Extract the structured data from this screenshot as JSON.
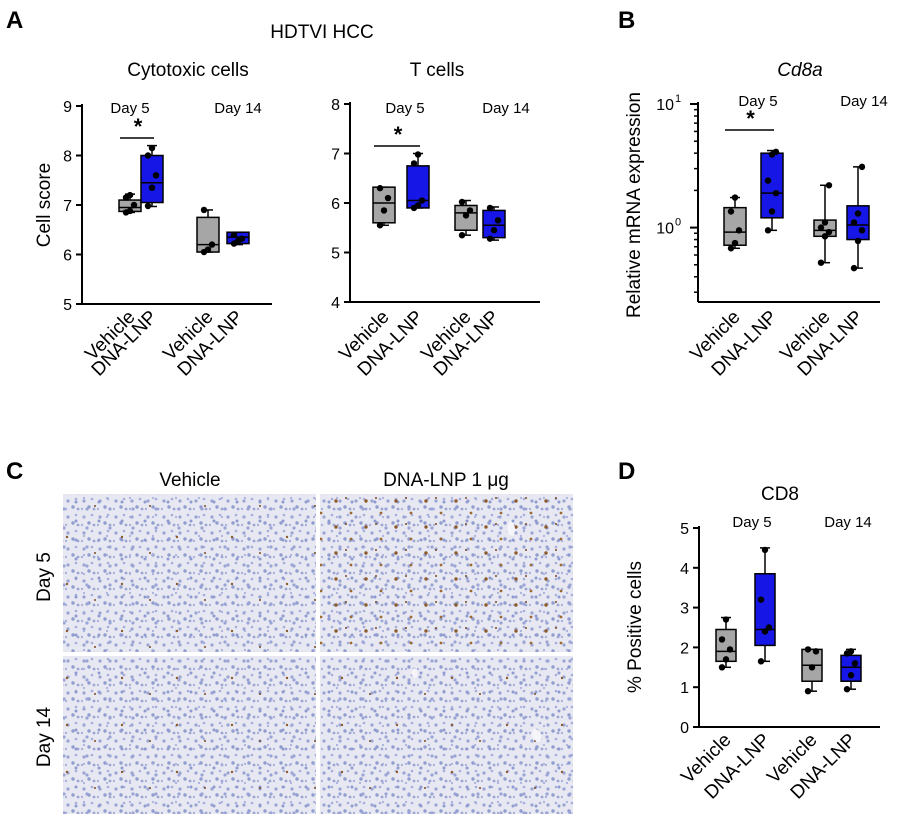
{
  "colors": {
    "vehicle_fill": "#a6a6a6",
    "dna_lnp_fill": "#1616e6",
    "tissue_bg": "#e6e6ef",
    "nuclei": "#8c98cc",
    "stain": "#8b5a2b"
  },
  "panels": {
    "A": "A",
    "B": "B",
    "C": "C",
    "D": "D"
  },
  "panelA": {
    "header": "HDTVI HCC"
  },
  "micrographs": {
    "col_labels": [
      "Vehicle",
      "DNA-LNP 1 μg"
    ],
    "row_labels": [
      "Day 5",
      "Day 14"
    ]
  },
  "chart_data": [
    {
      "id": "A1",
      "type": "box",
      "title": "Cytotoxic cells",
      "ylabel": "Cell score",
      "ylim": [
        5,
        9
      ],
      "yticks": [
        "5",
        "6",
        "7",
        "8",
        "9"
      ],
      "scale": "linear",
      "categories": [
        "Vehicle",
        "DNA-LNP",
        "Vehicle",
        "DNA-LNP"
      ],
      "groups": [
        "Day 5",
        "Day 14"
      ],
      "significance": [
        {
          "between": [
            0,
            1
          ],
          "label": "*"
        }
      ],
      "boxes": [
        {
          "min": 6.85,
          "q1": 6.87,
          "median": 6.95,
          "q3": 7.1,
          "max": 7.22,
          "points": [
            6.85,
            6.88,
            7.0,
            7.15,
            7.2
          ],
          "color": "#a6a6a6"
        },
        {
          "min": 6.97,
          "q1": 7.05,
          "median": 7.45,
          "q3": 8.0,
          "max": 8.2,
          "points": [
            6.98,
            7.35,
            7.6,
            8.0,
            8.15
          ],
          "color": "#1616e6"
        },
        {
          "min": 6.05,
          "q1": 6.05,
          "median": 6.2,
          "q3": 6.75,
          "max": 6.9,
          "points": [
            6.05,
            6.1,
            6.2,
            6.9
          ],
          "color": "#a6a6a6"
        },
        {
          "min": 6.2,
          "q1": 6.22,
          "median": 6.35,
          "q3": 6.45,
          "max": 6.45,
          "points": [
            6.22,
            6.27,
            6.32,
            6.4
          ],
          "color": "#1616e6"
        }
      ]
    },
    {
      "id": "A2",
      "type": "box",
      "title": "T cells",
      "ylabel": "",
      "ylim": [
        4,
        8
      ],
      "yticks": [
        "4",
        "5",
        "6",
        "7",
        "8"
      ],
      "scale": "linear",
      "categories": [
        "Vehicle",
        "DNA-LNP",
        "Vehicle",
        "DNA-LNP"
      ],
      "groups": [
        "Day 5",
        "Day 14"
      ],
      "significance": [
        {
          "between": [
            0,
            1
          ],
          "label": "*"
        }
      ],
      "boxes": [
        {
          "min": 5.55,
          "q1": 5.6,
          "median": 6.0,
          "q3": 6.32,
          "max": 6.32,
          "points": [
            5.55,
            5.85,
            6.1,
            6.3
          ],
          "color": "#a6a6a6"
        },
        {
          "min": 5.9,
          "q1": 5.9,
          "median": 6.05,
          "q3": 6.75,
          "max": 7.0,
          "points": [
            5.9,
            5.95,
            6.05,
            6.8,
            6.98
          ],
          "color": "#1616e6"
        },
        {
          "min": 5.35,
          "q1": 5.45,
          "median": 5.8,
          "q3": 5.95,
          "max": 6.05,
          "points": [
            5.35,
            5.75,
            5.85,
            6.02
          ],
          "color": "#a6a6a6"
        },
        {
          "min": 5.25,
          "q1": 5.3,
          "median": 5.55,
          "q3": 5.85,
          "max": 5.92,
          "points": [
            5.28,
            5.45,
            5.65,
            5.9
          ],
          "color": "#1616e6"
        }
      ]
    },
    {
      "id": "B",
      "type": "box",
      "title": "Cd8a",
      "ylabel": "Relative mRNA expression",
      "ylim": [
        0.25,
        10
      ],
      "yticks": [],
      "scale": "log",
      "categories": [
        "Vehicle",
        "DNA-LNP",
        "Vehicle",
        "DNA-LNP"
      ],
      "groups": [
        "Day 5",
        "Day 14"
      ],
      "significance": [
        {
          "between": [
            0,
            1
          ],
          "label": "*"
        }
      ],
      "boxes": [
        {
          "min": 0.68,
          "q1": 0.72,
          "median": 0.92,
          "q3": 1.45,
          "max": 1.75,
          "points": [
            0.68,
            0.75,
            0.95,
            1.35,
            1.75
          ],
          "color": "#a6a6a6"
        },
        {
          "min": 0.95,
          "q1": 1.2,
          "median": 1.9,
          "q3": 4.0,
          "max": 4.2,
          "points": [
            0.95,
            1.35,
            1.9,
            2.4,
            3.9,
            4.1
          ],
          "color": "#1616e6"
        },
        {
          "min": 0.52,
          "q1": 0.85,
          "median": 0.95,
          "q3": 1.15,
          "max": 2.2,
          "points": [
            0.52,
            0.85,
            0.92,
            1.0,
            1.1,
            2.2
          ],
          "color": "#a6a6a6"
        },
        {
          "min": 0.47,
          "q1": 0.8,
          "median": 1.05,
          "q3": 1.5,
          "max": 3.1,
          "points": [
            0.47,
            0.78,
            0.95,
            1.1,
            1.3,
            3.1
          ],
          "color": "#1616e6"
        }
      ]
    },
    {
      "id": "D",
      "type": "box",
      "title": "CD8",
      "ylabel": "% Positive cells",
      "ylim": [
        0,
        5
      ],
      "yticks": [
        "0",
        "1",
        "2",
        "3",
        "4",
        "5"
      ],
      "scale": "linear",
      "categories": [
        "Vehicle",
        "DNA-LNP",
        "Vehicle",
        "DNA-LNP"
      ],
      "groups": [
        "Day 5",
        "Day 14"
      ],
      "significance": [],
      "boxes": [
        {
          "min": 1.5,
          "q1": 1.65,
          "median": 1.9,
          "q3": 2.45,
          "max": 2.75,
          "points": [
            1.5,
            1.7,
            1.95,
            2.2,
            2.7
          ],
          "color": "#a6a6a6"
        },
        {
          "min": 1.65,
          "q1": 2.05,
          "median": 2.45,
          "q3": 3.85,
          "max": 4.5,
          "points": [
            1.65,
            2.4,
            2.5,
            3.2,
            4.45
          ],
          "color": "#1616e6"
        },
        {
          "min": 0.9,
          "q1": 1.15,
          "median": 1.55,
          "q3": 1.95,
          "max": 1.95,
          "points": [
            0.9,
            1.5,
            1.9,
            1.95
          ],
          "color": "#a6a6a6"
        },
        {
          "min": 0.95,
          "q1": 1.15,
          "median": 1.5,
          "q3": 1.8,
          "max": 1.95,
          "points": [
            0.95,
            1.3,
            1.6,
            1.85,
            1.9
          ],
          "color": "#1616e6"
        }
      ]
    }
  ],
  "log_ticks": {
    "major": [
      "10",
      "10"
    ],
    "exp": [
      "1",
      "0"
    ]
  }
}
